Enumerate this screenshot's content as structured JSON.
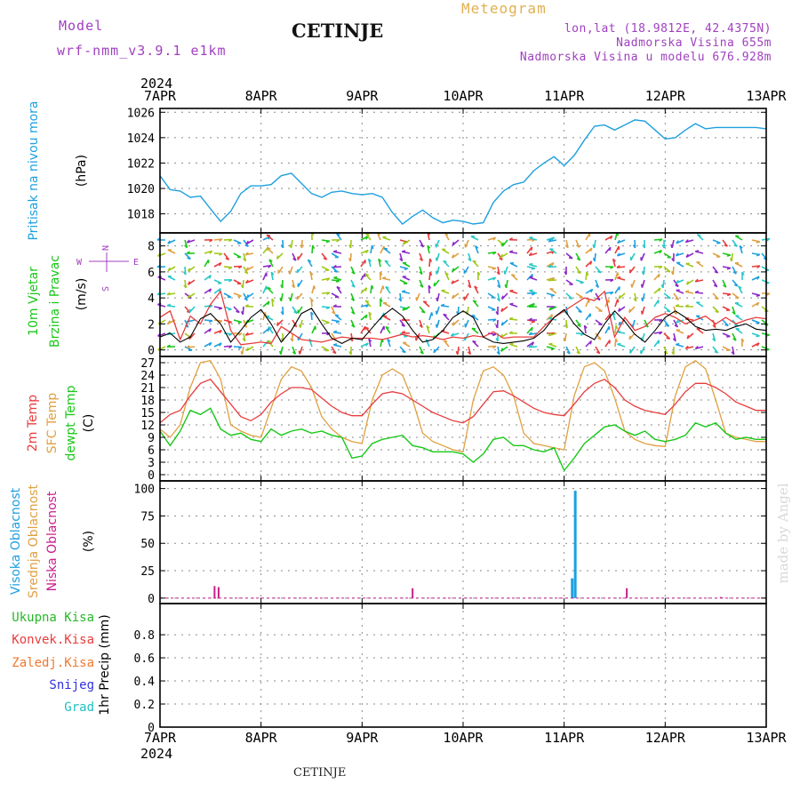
{
  "header": {
    "model_label": "Model",
    "model_name": "wrf-nmm_v3.9.1 e1km",
    "station": "CETINJE",
    "meteogram": "Meteogram",
    "lonlat": "lon,lat (18.9812E, 42.4375N)",
    "elevation": "Nadmorska Visina 655m",
    "model_elevation": "Nadmorska Visina u modelu 676.928m",
    "footer_station": "CETINJE",
    "credit": "made by Angel"
  },
  "colors": {
    "pressure": "#1ea0e0",
    "temp2m": "#e83c3c",
    "sfc_temp": "#e0a040",
    "dewpoint": "#18c818",
    "high_cloud": "#1ea0e0",
    "mid_cloud": "#e0a040",
    "low_cloud": "#c81e8c",
    "model_label": "#a040c0",
    "meteogram": "#e0b050",
    "total_precip": "#28b828",
    "conv_precip": "#e83c3c",
    "frz_precip": "#f07830",
    "snow": "#3030e0",
    "hail": "#20c0c0"
  },
  "chart_data": [
    {
      "type": "line",
      "panel": "pressure",
      "ylabel": [
        "Pritisak na nivou mora",
        "(hPa)"
      ],
      "ylim": [
        1016.5,
        1026.3
      ],
      "yticks": [
        1018,
        1020,
        1022,
        1024,
        1026
      ],
      "x_days": [
        0,
        0.1,
        0.2,
        0.3,
        0.4,
        0.5,
        0.6,
        0.7,
        0.8,
        0.9,
        1.0,
        1.1,
        1.2,
        1.3,
        1.4,
        1.5,
        1.6,
        1.7,
        1.8,
        1.9,
        2.0,
        2.1,
        2.2,
        2.3,
        2.4,
        2.5,
        2.6,
        2.7,
        2.8,
        2.9,
        3.0,
        3.1,
        3.2,
        3.3,
        3.4,
        3.5,
        3.6,
        3.7,
        3.8,
        3.9,
        4.0,
        4.1,
        4.2,
        4.3,
        4.4,
        4.5,
        4.6,
        4.7,
        4.8,
        4.9,
        5.0,
        5.1,
        5.2,
        5.3,
        5.4,
        5.5,
        5.6,
        5.7,
        5.8,
        5.9,
        6.0
      ],
      "values": [
        1021.0,
        1019.9,
        1019.8,
        1019.3,
        1019.4,
        1018.4,
        1017.4,
        1018.2,
        1019.6,
        1020.2,
        1020.2,
        1020.3,
        1021.0,
        1021.2,
        1020.4,
        1019.6,
        1019.3,
        1019.7,
        1019.8,
        1019.6,
        1019.5,
        1019.6,
        1019.3,
        1018.1,
        1017.2,
        1017.8,
        1018.3,
        1017.7,
        1017.3,
        1017.5,
        1017.4,
        1017.2,
        1017.3,
        1018.9,
        1019.8,
        1020.3,
        1020.5,
        1021.4,
        1022.0,
        1022.5,
        1021.8,
        1022.6,
        1023.8,
        1024.9,
        1025.0,
        1024.6,
        1025.0,
        1025.4,
        1025.3,
        1024.6,
        1023.9,
        1024.0,
        1024.6,
        1025.1,
        1024.7,
        1024.8,
        1024.8,
        1024.8,
        1024.8,
        1024.8,
        1024.7
      ]
    },
    {
      "type": "line",
      "panel": "wind",
      "ylabel": [
        "10m Vjetar",
        "Brzina i Pravac",
        "(m/s)"
      ],
      "compass": [
        "N",
        "W",
        "E",
        "S"
      ],
      "ylim": [
        -0.5,
        9.0
      ],
      "yticks": [
        0,
        2,
        4,
        6,
        8
      ],
      "x_days": [
        0,
        0.1,
        0.2,
        0.3,
        0.4,
        0.5,
        0.6,
        0.7,
        0.8,
        0.9,
        1.0,
        1.1,
        1.2,
        1.3,
        1.4,
        1.5,
        1.6,
        1.7,
        1.8,
        1.9,
        2.0,
        2.1,
        2.2,
        2.3,
        2.4,
        2.5,
        2.6,
        2.7,
        2.8,
        2.9,
        3.0,
        3.1,
        3.2,
        3.3,
        3.4,
        3.5,
        3.6,
        3.7,
        3.8,
        3.9,
        4.0,
        4.1,
        4.2,
        4.3,
        4.4,
        4.5,
        4.6,
        4.7,
        4.8,
        4.9,
        5.0,
        5.1,
        5.2,
        5.3,
        5.4,
        5.5,
        5.6,
        5.7,
        5.8,
        5.9,
        6.0
      ],
      "series": [
        {
          "name": "",
          "values": [
            2.5,
            3.0,
            0.8,
            2.6,
            2.0,
            3.5,
            4.5,
            1.5,
            0.4,
            0.5,
            0.6,
            0.5,
            1.8,
            1.3,
            0.8,
            0.7,
            0.6,
            0.8,
            1.0,
            0.9,
            0.9,
            0.9,
            0.8,
            1.0,
            1.2,
            1.0,
            1.1,
            1.0,
            0.8,
            1.0,
            0.9,
            1.1,
            1.0,
            1.4,
            0.9,
            1.0,
            1.0,
            1.0,
            1.8,
            2.5,
            3.0,
            3.5,
            4.0,
            3.8,
            4.5,
            1.0,
            2.5,
            1.5,
            1.8,
            2.5,
            2.8,
            2.5,
            2.0,
            2.3,
            2.6,
            2.0,
            2.5,
            2.0,
            2.3,
            2.5,
            2.4
          ]
        },
        {
          "name": "",
          "values": [
            1.0,
            1.3,
            0.6,
            1.0,
            2.4,
            2.8,
            2.0,
            0.6,
            1.5,
            2.5,
            3.1,
            2.0,
            0.6,
            1.5,
            2.8,
            3.2,
            2.0,
            0.9,
            0.5,
            0.9,
            0.8,
            1.7,
            2.6,
            3.2,
            2.6,
            1.5,
            0.6,
            0.8,
            1.5,
            2.5,
            3.0,
            2.5,
            1.0,
            0.6,
            0.5,
            0.6,
            0.7,
            0.9,
            1.5,
            2.5,
            3.1,
            2.0,
            1.2,
            0.8,
            2.0,
            3.0,
            2.2,
            1.2,
            0.6,
            1.5,
            2.5,
            3.0,
            2.5,
            1.8,
            1.5,
            1.6,
            1.5,
            1.8,
            2.0,
            1.6,
            1.5
          ]
        }
      ],
      "arrow_colors": [
        "#1ea0e0",
        "#28c8c8",
        "#18c818",
        "#a0c818",
        "#8c28c8",
        "#e83c3c",
        "#e0a040"
      ]
    },
    {
      "type": "line",
      "panel": "temperature",
      "ylabel": [
        "2m Temp",
        "SFC Temp",
        "dewpt Temp",
        "(C)"
      ],
      "ylim": [
        -1.5,
        28.5
      ],
      "yticks": [
        0,
        3,
        6,
        9,
        12,
        15,
        18,
        21,
        24,
        27
      ],
      "x_days": [
        0,
        0.1,
        0.2,
        0.3,
        0.4,
        0.5,
        0.6,
        0.7,
        0.8,
        0.9,
        1.0,
        1.1,
        1.2,
        1.3,
        1.4,
        1.5,
        1.6,
        1.7,
        1.8,
        1.9,
        2.0,
        2.1,
        2.2,
        2.3,
        2.4,
        2.5,
        2.6,
        2.7,
        2.8,
        2.9,
        3.0,
        3.1,
        3.2,
        3.3,
        3.4,
        3.5,
        3.6,
        3.7,
        3.8,
        3.9,
        4.0,
        4.1,
        4.2,
        4.3,
        4.4,
        4.5,
        4.6,
        4.7,
        4.8,
        4.9,
        5.0,
        5.1,
        5.2,
        5.3,
        5.4,
        5.5,
        5.6,
        5.7,
        5.8,
        5.9,
        6.0
      ],
      "series": [
        {
          "name": "2m Temp",
          "values": [
            12.5,
            14.5,
            15.5,
            19.0,
            22.0,
            23.0,
            20.0,
            17.0,
            14.0,
            13.0,
            14.5,
            17.5,
            19.5,
            21.0,
            21.0,
            20.5,
            18.5,
            16.5,
            15.0,
            14.2,
            14.2,
            17.0,
            19.5,
            20.0,
            19.5,
            18.0,
            16.5,
            15.0,
            14.0,
            13.0,
            12.5,
            14.0,
            17.0,
            20.0,
            20.2,
            19.0,
            17.5,
            16.0,
            15.0,
            14.5,
            14.2,
            17.0,
            20.0,
            22.0,
            23.0,
            21.0,
            18.0,
            16.5,
            15.5,
            15.0,
            14.5,
            17.0,
            20.0,
            22.0,
            22.0,
            21.0,
            19.5,
            17.5,
            16.5,
            15.5,
            15.5
          ]
        },
        {
          "name": "SFC Temp",
          "values": [
            11.0,
            9.0,
            12.0,
            21.0,
            27.0,
            27.5,
            23.0,
            12.0,
            10.5,
            9.5,
            9.0,
            16.0,
            23.0,
            26.0,
            25.0,
            21.0,
            14.0,
            11.0,
            9.0,
            8.0,
            7.5,
            18.0,
            24.0,
            25.5,
            24.0,
            18.0,
            10.0,
            8.0,
            7.0,
            6.0,
            5.5,
            18.0,
            25.0,
            26.0,
            24.0,
            19.0,
            10.0,
            7.5,
            7.0,
            6.5,
            6.0,
            19.0,
            26.0,
            27.0,
            25.0,
            18.5,
            10.5,
            8.5,
            7.5,
            7.0,
            6.8,
            19.0,
            26.0,
            27.5,
            25.5,
            18.0,
            10.0,
            9.0,
            8.5,
            8.0,
            8.0
          ]
        },
        {
          "name": "dewpt Temp",
          "values": [
            10.5,
            7.0,
            10.5,
            15.5,
            14.5,
            16.0,
            11.0,
            9.5,
            10.0,
            8.5,
            8.0,
            11.0,
            9.5,
            10.5,
            11.0,
            10.0,
            10.5,
            9.5,
            9.0,
            4.0,
            4.5,
            7.5,
            8.5,
            9.0,
            9.5,
            7.0,
            6.5,
            5.5,
            5.5,
            5.5,
            5.0,
            3.0,
            5.0,
            8.5,
            9.0,
            7.0,
            7.0,
            6.0,
            5.5,
            6.5,
            1.0,
            4.0,
            7.5,
            9.5,
            11.5,
            12.0,
            10.5,
            9.5,
            10.5,
            8.5,
            8.0,
            8.5,
            9.5,
            12.5,
            11.5,
            12.5,
            10.0,
            8.5,
            9.0,
            8.5,
            8.5
          ]
        }
      ]
    },
    {
      "type": "bar",
      "panel": "cloud",
      "ylabel": [
        "Visoka Oblacnost",
        "Srednja Oblacnost",
        "Niska Oblacnost",
        "(%)"
      ],
      "ylim": [
        -5,
        107
      ],
      "yticks": [
        0,
        25,
        50,
        75,
        100
      ],
      "series": [
        {
          "name": "Visoka Oblacnost",
          "bars": [
            {
              "x": 4.08,
              "v": 18
            },
            {
              "x": 4.11,
              "v": 98
            }
          ]
        },
        {
          "name": "Srednja Oblacnost",
          "bars": []
        },
        {
          "name": "Niska Oblacnost",
          "bars": [
            {
              "x": 0.54,
              "v": 11
            },
            {
              "x": 0.58,
              "v": 10
            },
            {
              "x": 2.5,
              "v": 9
            },
            {
              "x": 4.62,
              "v": 9
            },
            {
              "x": 5.55,
              "v": 1
            }
          ]
        }
      ]
    },
    {
      "type": "bar",
      "panel": "precip",
      "ylabel": [
        "1hr Precip (mm)"
      ],
      "legend": [
        "Ukupna Kisa",
        "Konvek.Kisa",
        "Zaledj.Kisa",
        "Snijeg",
        "Grad"
      ],
      "ylim": [
        0,
        1.07
      ],
      "yticks": [
        0,
        0.2,
        0.4,
        0.6,
        0.8
      ],
      "yticklabels": [
        "0",
        "0.2",
        "0.4",
        "0.6",
        "0.8"
      ],
      "values": []
    }
  ],
  "axis": {
    "year": "2024",
    "day_labels": [
      "7APR",
      "8APR",
      "9APR",
      "10APR",
      "11APR",
      "12APR",
      "13APR"
    ]
  }
}
